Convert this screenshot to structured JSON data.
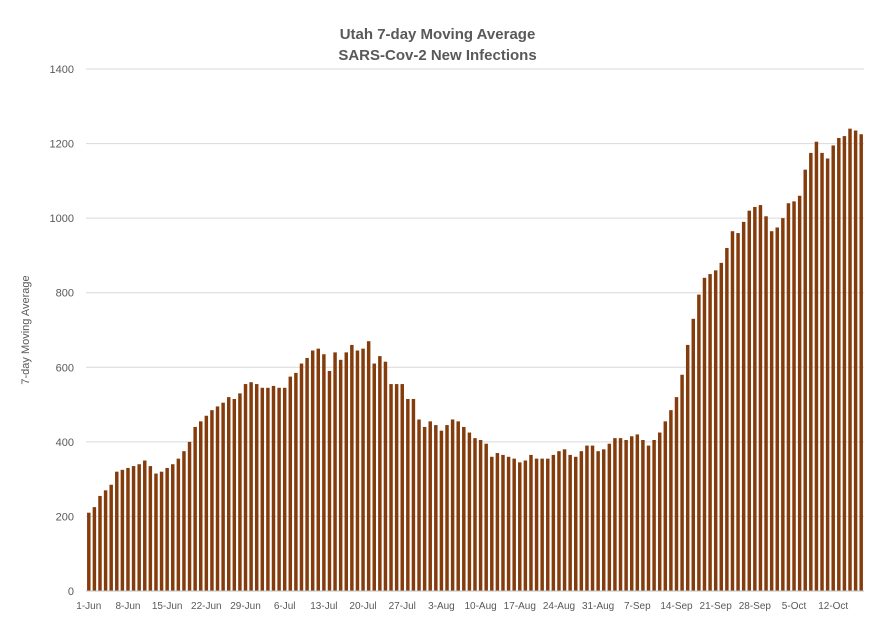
{
  "chart_data": {
    "type": "bar",
    "title": "Utah 7-day Moving Average",
    "subtitle": "SARS-Cov-2 New Infections",
    "xlabel": "",
    "ylabel": "7-day Moving Average",
    "ylim": [
      0,
      1400
    ],
    "yticks": [
      0,
      200,
      400,
      600,
      800,
      1000,
      1200,
      1400
    ],
    "grid": true,
    "legend": "none",
    "x_tick_labels": [
      "1-Jun",
      "8-Jun",
      "15-Jun",
      "22-Jun",
      "29-Jun",
      "6-Jul",
      "13-Jul",
      "20-Jul",
      "27-Jul",
      "3-Aug",
      "10-Aug",
      "17-Aug",
      "24-Aug",
      "31-Aug",
      "7-Sep",
      "14-Sep",
      "21-Sep",
      "28-Sep",
      "5-Oct",
      "12-Oct"
    ],
    "x_start_date": "1-Jun",
    "bar_color": "#843C0C",
    "values": [
      210,
      225,
      255,
      270,
      285,
      320,
      325,
      330,
      335,
      340,
      350,
      335,
      315,
      320,
      330,
      340,
      355,
      375,
      400,
      440,
      455,
      470,
      485,
      495,
      505,
      520,
      515,
      530,
      555,
      560,
      555,
      545,
      545,
      550,
      545,
      545,
      575,
      585,
      610,
      625,
      645,
      650,
      635,
      590,
      640,
      620,
      640,
      660,
      645,
      650,
      670,
      610,
      630,
      615,
      555,
      555,
      555,
      515,
      515,
      460,
      440,
      455,
      445,
      430,
      445,
      460,
      455,
      440,
      425,
      410,
      405,
      395,
      360,
      370,
      365,
      360,
      355,
      345,
      350,
      365,
      355,
      355,
      355,
      365,
      375,
      380,
      365,
      360,
      375,
      390,
      390,
      375,
      380,
      395,
      410,
      410,
      405,
      415,
      420,
      405,
      390,
      405,
      425,
      455,
      485,
      520,
      580,
      660,
      730,
      795,
      840,
      850,
      860,
      880,
      920,
      965,
      960,
      990,
      1020,
      1030,
      1035,
      1005,
      965,
      975,
      1000,
      1040,
      1045,
      1060,
      1130,
      1175,
      1205,
      1175,
      1160,
      1195,
      1215,
      1220,
      1240,
      1235,
      1225
    ]
  }
}
